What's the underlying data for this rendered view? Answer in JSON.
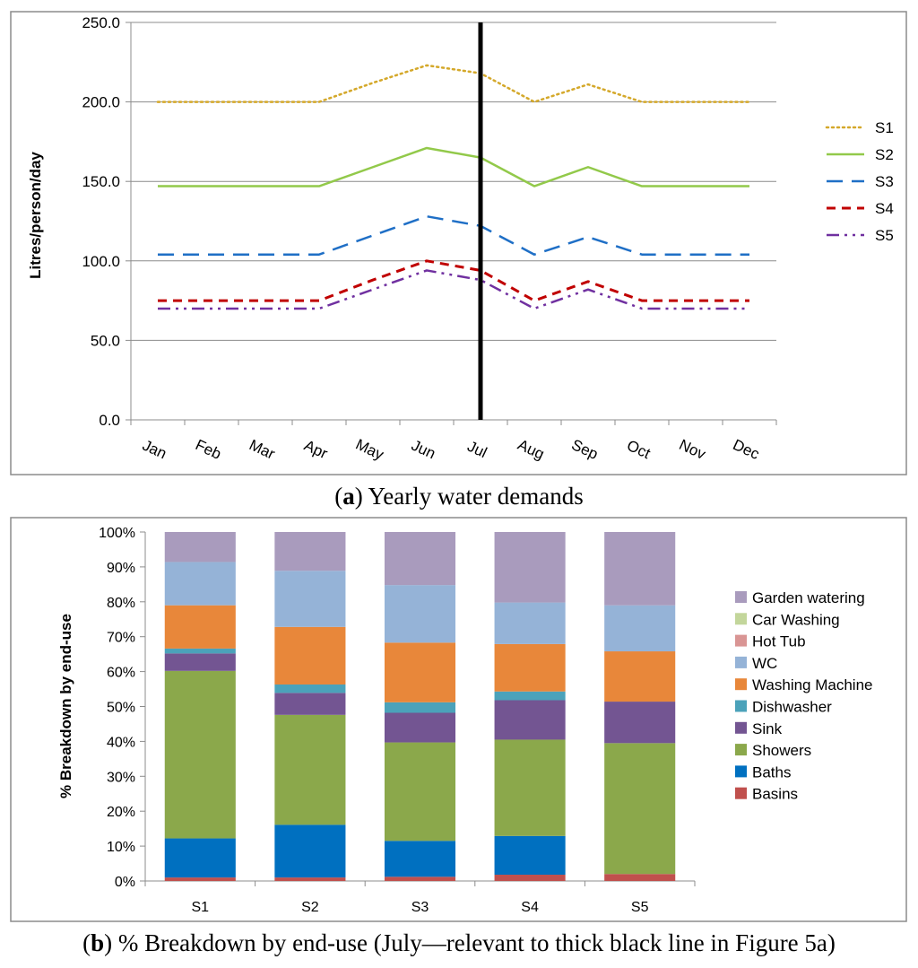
{
  "chart_data": [
    {
      "type": "line",
      "title": "",
      "xlabel": "",
      "ylabel": "Litres/person/day",
      "ylim": [
        0,
        250
      ],
      "yticks": [
        "0.0",
        "50.0",
        "100.0",
        "150.0",
        "200.0",
        "250.0"
      ],
      "categories": [
        "Jan",
        "Feb",
        "Mar",
        "Apr",
        "May",
        "Jun",
        "Jul",
        "Aug",
        "Sep",
        "Oct",
        "Nov",
        "Dec"
      ],
      "grid": true,
      "legend": "right",
      "marker_line": {
        "category": "Jul",
        "color": "#000000"
      },
      "series": [
        {
          "name": "S1",
          "color": "#D4A82A",
          "dash": "dotted",
          "values": [
            200,
            200,
            200,
            200,
            212,
            223,
            218,
            200,
            211,
            200,
            200,
            200
          ]
        },
        {
          "name": "S2",
          "color": "#92C94A",
          "dash": "solid",
          "values": [
            147,
            147,
            147,
            147,
            159,
            171,
            165,
            147,
            159,
            147,
            147,
            147
          ]
        },
        {
          "name": "S3",
          "color": "#1F6FC6",
          "dash": "long-dash",
          "values": [
            104,
            104,
            104,
            104,
            116,
            128,
            122,
            104,
            115,
            104,
            104,
            104
          ]
        },
        {
          "name": "S4",
          "color": "#C00000",
          "dash": "dash",
          "values": [
            75,
            75,
            75,
            75,
            88,
            100,
            94,
            75,
            87,
            75,
            75,
            75
          ]
        },
        {
          "name": "S5",
          "color": "#7030A0",
          "dash": "dash-dot-dot",
          "values": [
            70,
            70,
            70,
            70,
            82,
            94,
            88,
            70,
            82,
            70,
            70,
            70
          ]
        }
      ]
    },
    {
      "type": "bar",
      "stacked": true,
      "title": "",
      "xlabel": "",
      "ylabel": "% Breakdown by end-use",
      "ylim": [
        0,
        100
      ],
      "yticks": [
        "0%",
        "10%",
        "20%",
        "30%",
        "40%",
        "50%",
        "60%",
        "70%",
        "80%",
        "90%",
        "100%"
      ],
      "categories": [
        "S1",
        "S2",
        "S3",
        "S4",
        "S5"
      ],
      "legend": "right",
      "series": [
        {
          "name": "Basins",
          "color": "#C0504D",
          "values": [
            1,
            1,
            1.2,
            1.8,
            2
          ]
        },
        {
          "name": "Baths",
          "color": "#0070C0",
          "values": [
            11.2,
            15.1,
            10.3,
            11.1,
            0
          ]
        },
        {
          "name": "Showers",
          "color": "#8BA84B",
          "values": [
            48,
            31.5,
            28.2,
            27.6,
            37.5
          ]
        },
        {
          "name": "Sink",
          "color": "#735592",
          "values": [
            5,
            6.3,
            8.5,
            11.3,
            11.9
          ]
        },
        {
          "name": "Dishwasher",
          "color": "#4BA2BA",
          "values": [
            1.4,
            2.4,
            3,
            2.5,
            0
          ]
        },
        {
          "name": "Washing Machine",
          "color": "#E8873A",
          "values": [
            12.4,
            16.5,
            17.1,
            13.6,
            14.4
          ]
        },
        {
          "name": "WC",
          "color": "#95B3D7",
          "values": [
            12.4,
            16.1,
            16.5,
            11.9,
            13.2
          ]
        },
        {
          "name": "Hot Tub",
          "color": "#D99594",
          "values": [
            0,
            0,
            0,
            0,
            0
          ]
        },
        {
          "name": "Car Washing",
          "color": "#C3D69B",
          "values": [
            0,
            0,
            0,
            0,
            0
          ]
        },
        {
          "name": "Garden watering",
          "color": "#A99BBD",
          "values": [
            8.6,
            11.1,
            15.2,
            20.2,
            21
          ]
        }
      ],
      "legend_order": [
        "Garden watering",
        "Car Washing",
        "Hot Tub",
        "WC",
        "Washing Machine",
        "Dishwasher",
        "Sink",
        "Showers",
        "Baths",
        "Basins"
      ]
    }
  ],
  "captions": {
    "a_letter": "a",
    "a_text": " Yearly water demands",
    "b_letter": "b",
    "b_text": " % Breakdown by end-use (July—relevant to thick black line in Figure 5a)"
  }
}
